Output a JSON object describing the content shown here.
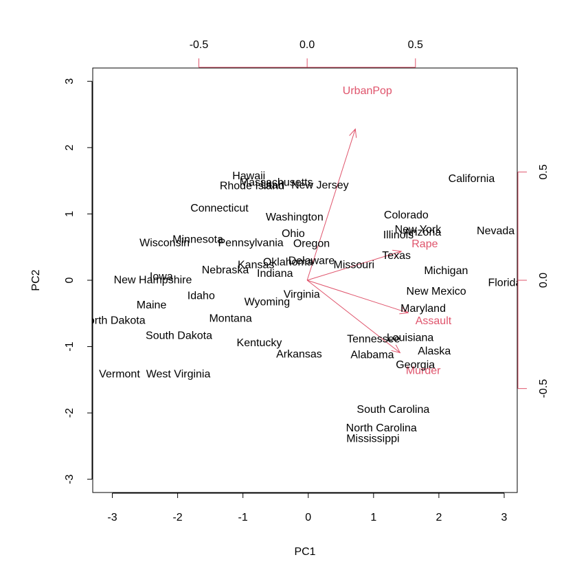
{
  "chart_data": {
    "type": "scatter",
    "xlabel": "PC1",
    "ylabel": "PC2",
    "xlim": [
      -3.3,
      3.2
    ],
    "ylim": [
      -3.2,
      3.2
    ],
    "x_ticks": [
      -3,
      -2,
      -1,
      0,
      1,
      2,
      3
    ],
    "y_ticks": [
      -3,
      -2,
      -1,
      0,
      1,
      2,
      3
    ],
    "x_tick_labels": [
      "-3",
      "-2",
      "-1",
      "0",
      "1",
      "2",
      "3"
    ],
    "y_tick_labels": [
      "-3",
      "-2",
      "-1",
      "0",
      "1",
      "2",
      "3"
    ],
    "loading_scale": {
      "xlim": [
        -0.99,
        0.97
      ],
      "ylim": [
        -0.98,
        0.98
      ],
      "top_ticks": [
        -0.5,
        0.0,
        0.5
      ],
      "top_tick_labels": [
        "-0.5",
        "0.0",
        "0.5"
      ],
      "right_ticks": [
        -0.5,
        0.0,
        0.5
      ],
      "right_tick_labels": [
        "-0.5",
        "0.0",
        "0.5"
      ]
    },
    "arrow_color": "#DF536B",
    "point_label_color": "#000000",
    "observations": [
      {
        "name": "Alabama",
        "x": 0.98,
        "y": -1.13
      },
      {
        "name": "Alaska",
        "x": 1.93,
        "y": -1.07
      },
      {
        "name": "Arizona",
        "x": 1.75,
        "y": 0.72
      },
      {
        "name": "Arkansas",
        "x": -0.14,
        "y": -1.12
      },
      {
        "name": "California",
        "x": 2.5,
        "y": 1.53
      },
      {
        "name": "Colorado",
        "x": 1.5,
        "y": 0.98
      },
      {
        "name": "Connecticut",
        "x": -1.36,
        "y": 1.08
      },
      {
        "name": "Delaware",
        "x": 0.05,
        "y": 0.29
      },
      {
        "name": "Florida",
        "x": 3.01,
        "y": -0.04
      },
      {
        "name": "Georgia",
        "x": 1.64,
        "y": -1.28
      },
      {
        "name": "Hawaii",
        "x": -0.91,
        "y": 1.57
      },
      {
        "name": "Idaho",
        "x": -1.64,
        "y": -0.24
      },
      {
        "name": "Illinois",
        "x": 1.38,
        "y": 0.68
      },
      {
        "name": "Indiana",
        "x": -0.51,
        "y": 0.1
      },
      {
        "name": "Iowa",
        "x": -2.25,
        "y": 0.05
      },
      {
        "name": "Kansas",
        "x": -0.8,
        "y": 0.23
      },
      {
        "name": "Kentucky",
        "x": -0.75,
        "y": -0.95
      },
      {
        "name": "Louisiana",
        "x": 1.56,
        "y": -0.87
      },
      {
        "name": "Maine",
        "x": -2.4,
        "y": -0.38
      },
      {
        "name": "Maryland",
        "x": 1.76,
        "y": -0.43
      },
      {
        "name": "Massachusetts",
        "x": -0.49,
        "y": 1.47
      },
      {
        "name": "Michigan",
        "x": 2.11,
        "y": 0.14
      },
      {
        "name": "Minnesota",
        "x": -1.69,
        "y": 0.61
      },
      {
        "name": "Mississippi",
        "x": 0.99,
        "y": -2.39
      },
      {
        "name": "Missouri",
        "x": 0.7,
        "y": 0.23
      },
      {
        "name": "Montana",
        "x": -1.19,
        "y": -0.58
      },
      {
        "name": "Nebraska",
        "x": -1.27,
        "y": 0.15
      },
      {
        "name": "Nevada",
        "x": 2.87,
        "y": 0.74
      },
      {
        "name": "New Hampshire",
        "x": -2.38,
        "y": 0.0
      },
      {
        "name": "New Jersey",
        "x": 0.18,
        "y": 1.43
      },
      {
        "name": "New Mexico",
        "x": 1.96,
        "y": -0.17
      },
      {
        "name": "New York",
        "x": 1.68,
        "y": 0.76
      },
      {
        "name": "North Carolina",
        "x": 1.12,
        "y": -2.23
      },
      {
        "name": "North Dakota",
        "x": -2.99,
        "y": -0.61
      },
      {
        "name": "Ohio",
        "x": -0.23,
        "y": 0.7
      },
      {
        "name": "Oklahoma",
        "x": -0.31,
        "y": 0.27
      },
      {
        "name": "Oregon",
        "x": 0.05,
        "y": 0.55
      },
      {
        "name": "Pennsylvania",
        "x": -0.88,
        "y": 0.56
      },
      {
        "name": "Rhode Island",
        "x": -0.86,
        "y": 1.42
      },
      {
        "name": "South Carolina",
        "x": 1.3,
        "y": -1.95
      },
      {
        "name": "South Dakota",
        "x": -1.98,
        "y": -0.84
      },
      {
        "name": "Tennessee",
        "x": 1.0,
        "y": -0.89
      },
      {
        "name": "Texas",
        "x": 1.35,
        "y": 0.37
      },
      {
        "name": "Utah",
        "x": -0.55,
        "y": 1.43
      },
      {
        "name": "Vermont",
        "x": -2.89,
        "y": -1.42
      },
      {
        "name": "Virginia",
        "x": -0.1,
        "y": -0.22
      },
      {
        "name": "Washington",
        "x": -0.21,
        "y": 0.95
      },
      {
        "name": "West Virginia",
        "x": -1.99,
        "y": -1.42
      },
      {
        "name": "Wisconsin",
        "x": -2.2,
        "y": 0.56
      },
      {
        "name": "Wyoming",
        "x": -0.63,
        "y": -0.33
      }
    ],
    "variables": [
      {
        "name": "Murder",
        "x": 0.536,
        "y": -0.418
      },
      {
        "name": "Assault",
        "x": 0.583,
        "y": -0.188
      },
      {
        "name": "UrbanPop",
        "x": 0.278,
        "y": 0.873
      },
      {
        "name": "Rape",
        "x": 0.543,
        "y": 0.167
      }
    ]
  }
}
